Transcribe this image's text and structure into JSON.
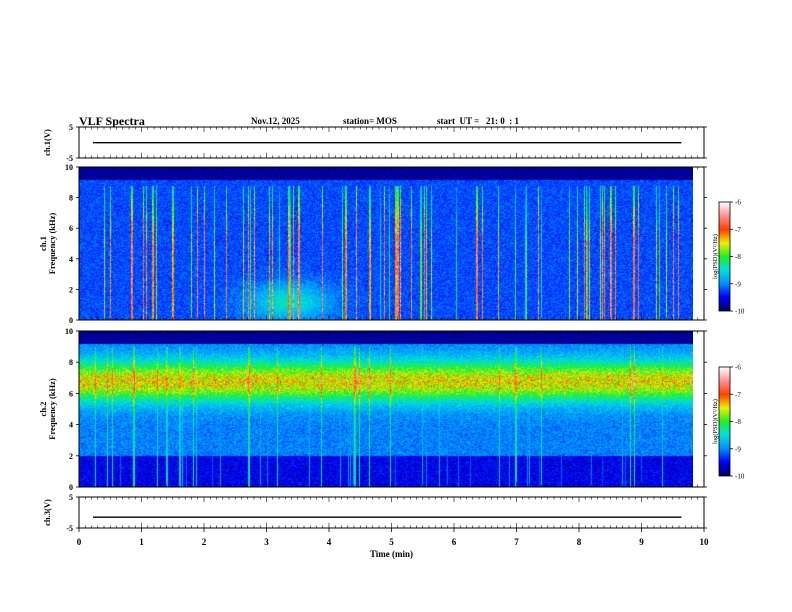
{
  "header": {
    "title": "VLF Spectra",
    "date": "Nov.12, 2025",
    "station": "station= MOS",
    "start": "start  UT =   21: 0  : 1"
  },
  "chart_data": [
    {
      "type": "line",
      "ylabel": "ch.1(V)",
      "ylim": [
        -5,
        5
      ],
      "yticks": [
        "5",
        "-5"
      ],
      "series": [
        {
          "values": [
            -0.05
          ]
        }
      ]
    },
    {
      "type": "heatmap",
      "ylabel": "ch.1\nFrequency (kHz)",
      "ylim": [
        0,
        10
      ],
      "yticks": [
        "0",
        "2",
        "4",
        "6",
        "8",
        "10"
      ],
      "colorbar": {
        "label": "log(PSD)(V²/Hz)",
        "range": [
          -10,
          -6
        ],
        "ticks": [
          "-6",
          "-7",
          "-8",
          "-9",
          "-10"
        ]
      },
      "colors": [
        "#000060",
        "#0000ff",
        "#0090ff",
        "#00e0e0",
        "#20f020",
        "#f0f000",
        "#ff4000",
        "#ff9090",
        "#ffffff"
      ]
    },
    {
      "type": "heatmap",
      "ylabel": "ch.2\nFrequency (kHz)",
      "ylim": [
        0,
        10
      ],
      "yticks": [
        "0",
        "2",
        "4",
        "6",
        "8",
        "10"
      ],
      "colorbar": {
        "label": "log(PSD)(V²/Hz)",
        "range": [
          -10,
          -6
        ],
        "ticks": [
          "-6",
          "-7",
          "-8",
          "-9",
          "-10"
        ]
      },
      "colors": [
        "#000060",
        "#0000ff",
        "#0090ff",
        "#00e0e0",
        "#20f020",
        "#f0f000",
        "#ff4000",
        "#ff9090",
        "#ffffff"
      ]
    },
    {
      "type": "line",
      "ylabel": "ch.3(V)",
      "ylim": [
        -5,
        5
      ],
      "yticks": [
        "5",
        "-5"
      ],
      "series": [
        {
          "values": [
            -1.5
          ]
        }
      ]
    }
  ],
  "xaxis": {
    "label": "Time (min)",
    "range": [
      0,
      10
    ],
    "ticks": [
      "0",
      "1",
      "2",
      "3",
      "4",
      "5",
      "6",
      "7",
      "8",
      "9",
      "10"
    ],
    "data_end": 9.83
  }
}
